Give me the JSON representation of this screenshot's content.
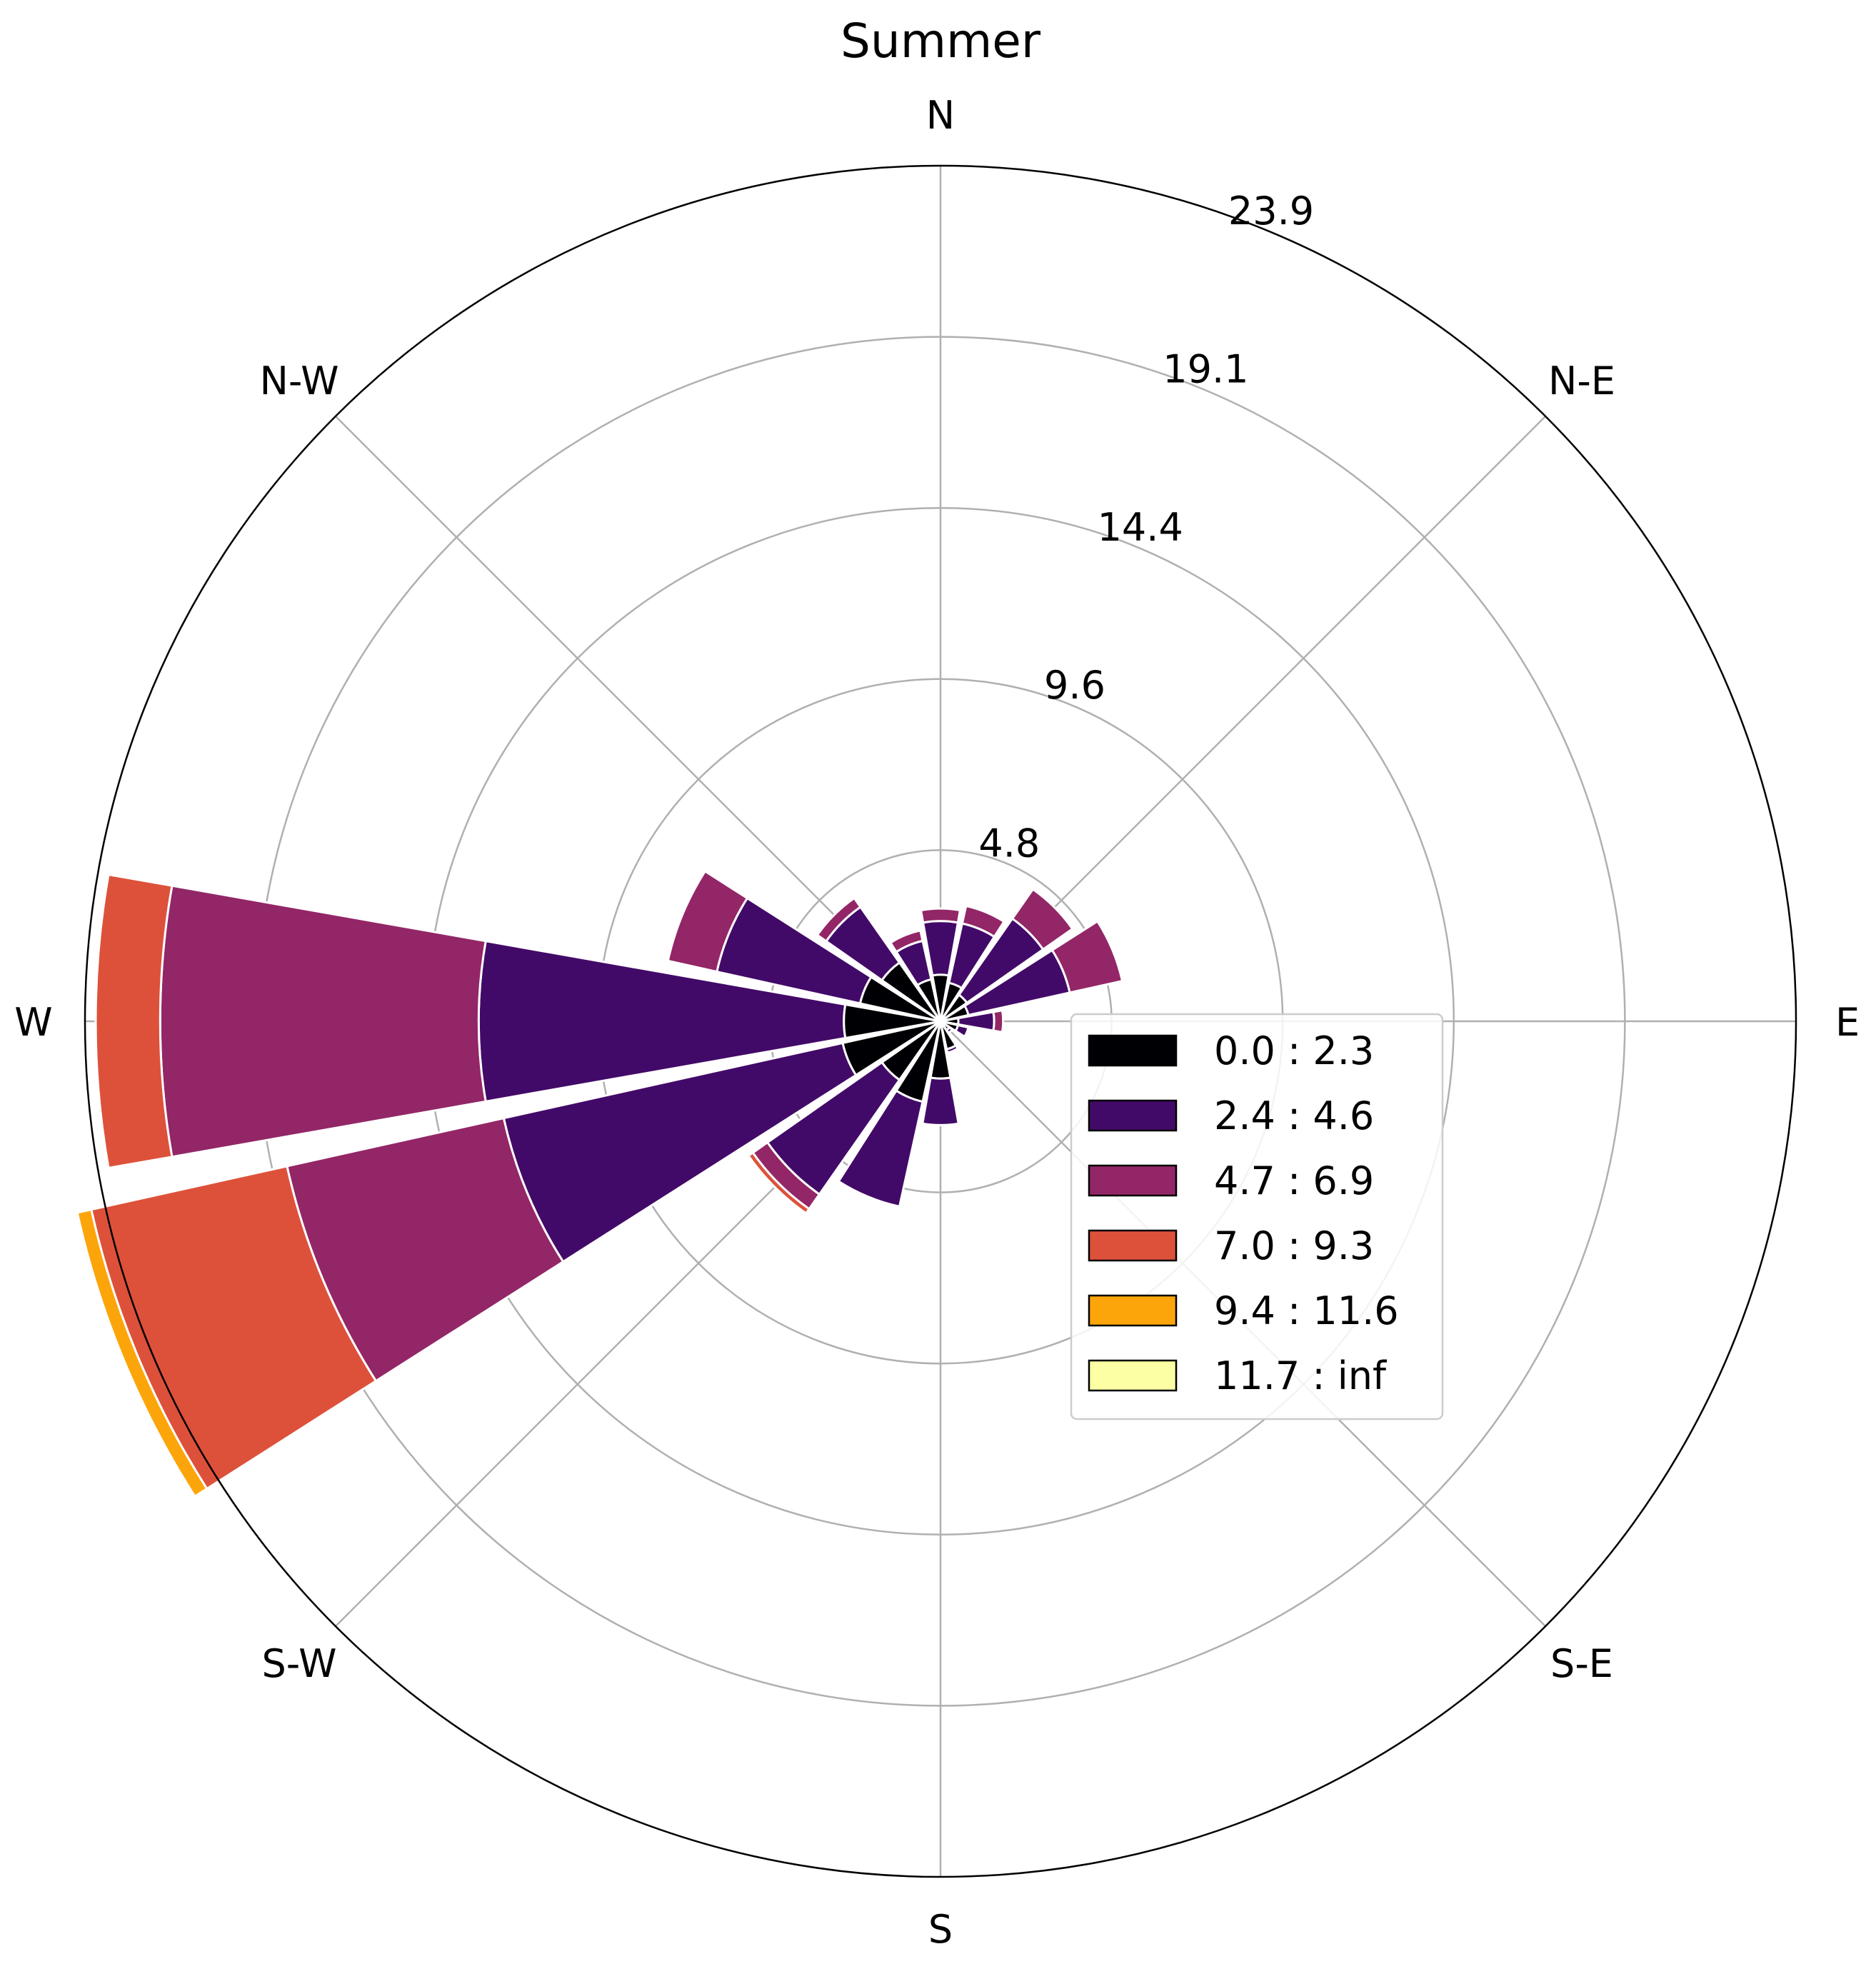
{
  "chart_data": {
    "type": "windrose",
    "title": "Summer",
    "direction_labels": [
      "N",
      "N-E",
      "E",
      "S-E",
      "S",
      "S-W",
      "W",
      "N-W"
    ],
    "direction_angles_deg": [
      0,
      45,
      90,
      135,
      180,
      225,
      270,
      315
    ],
    "radial_ticks": [
      "4.8",
      "9.6",
      "14.4",
      "19.1",
      "23.9"
    ],
    "radial_tick_values": [
      4.78,
      9.56,
      14.34,
      19.12,
      23.9
    ],
    "rmax": 23.9,
    "sector_count": 16,
    "sector_width_deg": 20,
    "legend_placement": "lower-right",
    "grid": true,
    "bins": [
      {
        "label": "0.0 : 2.3",
        "color": "#000004"
      },
      {
        "label": "2.4 : 4.6",
        "color": "#420a68"
      },
      {
        "label": "4.7 : 6.9",
        "color": "#932667"
      },
      {
        "label": "7.0 : 9.3",
        "color": "#dd513a"
      },
      {
        "label": "9.4 : 11.6",
        "color": "#fca50a"
      },
      {
        "label": "11.7 : inf",
        "color": "#fcffa4"
      }
    ],
    "sectors": [
      {
        "direction_deg": 0,
        "values": [
          1.3,
          1.5,
          0.35,
          0,
          0,
          0
        ]
      },
      {
        "direction_deg": 22.5,
        "values": [
          1.1,
          1.7,
          0.5,
          0,
          0,
          0
        ]
      },
      {
        "direction_deg": 45,
        "values": [
          0.9,
          2.6,
          1.0,
          0,
          0,
          0
        ]
      },
      {
        "direction_deg": 67.5,
        "values": [
          0.8,
          2.9,
          1.5,
          0,
          0,
          0
        ]
      },
      {
        "direction_deg": 90,
        "values": [
          0.5,
          1.0,
          0.25,
          0,
          0,
          0
        ]
      },
      {
        "direction_deg": 112.5,
        "values": [
          0.5,
          0.3,
          0.05,
          0,
          0,
          0
        ]
      },
      {
        "direction_deg": 135,
        "values": [
          0.3,
          0.1,
          0,
          0,
          0,
          0
        ]
      },
      {
        "direction_deg": 157.5,
        "values": [
          0.8,
          0.1,
          0,
          0,
          0,
          0
        ]
      },
      {
        "direction_deg": 180,
        "values": [
          1.6,
          1.3,
          0,
          0,
          0,
          0
        ]
      },
      {
        "direction_deg": 202.5,
        "values": [
          2.3,
          3.0,
          0,
          0,
          0,
          0
        ]
      },
      {
        "direction_deg": 225,
        "values": [
          2.0,
          3.9,
          0.5,
          0.15,
          0,
          0
        ]
      },
      {
        "direction_deg": 247.5,
        "values": [
          2.8,
          9.7,
          6.2,
          5.6,
          0.4,
          0
        ]
      },
      {
        "direction_deg": 270,
        "values": [
          2.7,
          10.2,
          8.9,
          1.8,
          0,
          0
        ]
      },
      {
        "direction_deg": 292.5,
        "values": [
          2.3,
          4.1,
          1.4,
          0,
          0,
          0
        ]
      },
      {
        "direction_deg": 315,
        "values": [
          2.0,
          1.9,
          0.3,
          0,
          0,
          0
        ]
      },
      {
        "direction_deg": 337.5,
        "values": [
          1.2,
          1.1,
          0.3,
          0,
          0,
          0
        ]
      }
    ]
  }
}
